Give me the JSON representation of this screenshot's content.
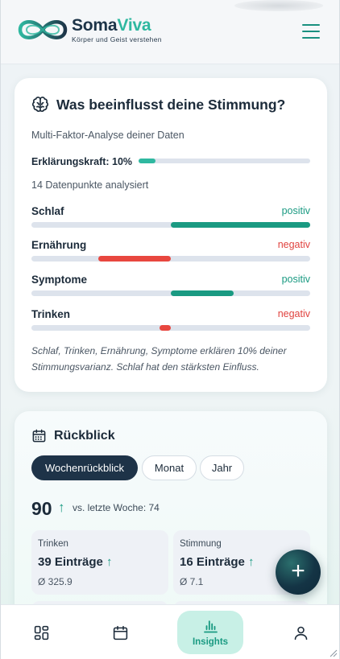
{
  "brand": {
    "name_part1": "Soma",
    "name_part2": "Viva",
    "tagline": "Körper und Geist verstehen",
    "colors": {
      "dark": "#1d3448",
      "teal": "#2fb8a0"
    }
  },
  "header": {
    "menu_icon": "hamburger-menu-icon"
  },
  "influence": {
    "title": "Was beeinflusst deine Stimmung?",
    "subtitle": "Multi-Faktor-Analyse deiner Daten",
    "explanatory_label": "Erklärungskraft: 10%",
    "explanatory_value": 0.1,
    "data_points": "14 Datenpunkte analysiert",
    "factors": [
      {
        "name": "Schlaf",
        "direction": "positiv",
        "sign": 1,
        "strength": 1.0
      },
      {
        "name": "Ernährung",
        "direction": "negativ",
        "sign": -1,
        "strength": 0.52
      },
      {
        "name": "Symptome",
        "direction": "positiv",
        "sign": 1,
        "strength": 0.45
      },
      {
        "name": "Trinken",
        "direction": "negativ",
        "sign": -1,
        "strength": 0.08
      }
    ],
    "summary": "Schlaf, Trinken, Ernährung, Symptome erklären 10% deiner Stimmungsvarianz. Schlaf hat den stärksten Einfluss."
  },
  "review": {
    "title": "Rückblick",
    "tabs": [
      {
        "label": "Wochenrückblick",
        "active": true
      },
      {
        "label": "Monat",
        "active": false
      },
      {
        "label": "Jahr",
        "active": false
      }
    ],
    "total": "90",
    "total_trend_arrow": "↑",
    "comparison": "vs. letzte Woche: 74",
    "stats": [
      {
        "label": "Trinken",
        "value": "39 Einträge",
        "arrow": "↑",
        "average": "Ø 325.9"
      },
      {
        "label": "Stimmung",
        "value": "16 Einträge",
        "arrow": "↑",
        "average": "Ø 7.1"
      }
    ]
  },
  "fab": {
    "label": "+"
  },
  "nav": {
    "items": [
      {
        "name": "dashboard",
        "icon": "grid-icon",
        "label": ""
      },
      {
        "name": "calendar",
        "icon": "calendar-icon",
        "label": ""
      },
      {
        "name": "insights",
        "icon": "bar-chart-icon",
        "label": "Insights",
        "active": true
      },
      {
        "name": "profile",
        "icon": "user-icon",
        "label": ""
      }
    ]
  }
}
